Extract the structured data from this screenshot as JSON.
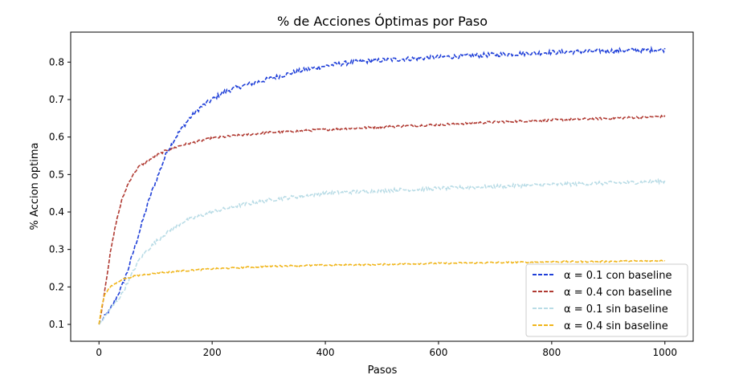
{
  "chart_data": {
    "type": "line",
    "title": "% de Acciones Óptimas por Paso",
    "xlabel": "Pasos",
    "ylabel": "% Accion optima",
    "xlim": [
      -50,
      1050
    ],
    "ylim": [
      0.055,
      0.88
    ],
    "x_ticks": [
      0,
      200,
      400,
      600,
      800,
      1000
    ],
    "y_ticks": [
      0.1,
      0.2,
      0.3,
      0.4,
      0.5,
      0.6,
      0.7,
      0.8
    ],
    "grid": false,
    "legend_position": "lower-right",
    "series": [
      {
        "name": "α = 0.1 con baseline",
        "color": "#1f3fd8",
        "noise": 0.006,
        "x": [
          0,
          10,
          20,
          30,
          40,
          50,
          60,
          70,
          80,
          90,
          100,
          110,
          120,
          140,
          160,
          180,
          200,
          220,
          250,
          300,
          350,
          400,
          450,
          500,
          600,
          700,
          800,
          900,
          1000
        ],
        "y": [
          0.1,
          0.12,
          0.14,
          0.17,
          0.2,
          0.24,
          0.29,
          0.34,
          0.39,
          0.44,
          0.48,
          0.52,
          0.56,
          0.61,
          0.65,
          0.68,
          0.7,
          0.72,
          0.735,
          0.755,
          0.775,
          0.79,
          0.8,
          0.805,
          0.813,
          0.82,
          0.826,
          0.83,
          0.833
        ]
      },
      {
        "name": " α = 0.4 con baseline",
        "color": "#b03a32",
        "noise": 0.003,
        "x": [
          0,
          5,
          10,
          15,
          20,
          30,
          40,
          50,
          60,
          70,
          80,
          100,
          120,
          150,
          200,
          250,
          300,
          400,
          500,
          600,
          700,
          800,
          900,
          1000
        ],
        "y": [
          0.1,
          0.14,
          0.19,
          0.24,
          0.29,
          0.37,
          0.43,
          0.47,
          0.5,
          0.52,
          0.53,
          0.55,
          0.565,
          0.58,
          0.597,
          0.605,
          0.612,
          0.62,
          0.627,
          0.633,
          0.64,
          0.645,
          0.65,
          0.655
        ]
      },
      {
        "name": "α = 0.1 sin baseline",
        "color": "#b9dce6",
        "noise": 0.005,
        "x": [
          0,
          10,
          20,
          30,
          40,
          50,
          60,
          70,
          80,
          100,
          120,
          150,
          200,
          250,
          300,
          400,
          500,
          600,
          700,
          800,
          900,
          1000
        ],
        "y": [
          0.1,
          0.12,
          0.14,
          0.16,
          0.18,
          0.21,
          0.24,
          0.27,
          0.29,
          0.32,
          0.345,
          0.375,
          0.4,
          0.418,
          0.432,
          0.45,
          0.457,
          0.463,
          0.468,
          0.473,
          0.477,
          0.482
        ]
      },
      {
        "name": " α = 0.4 sin baseline",
        "color": "#f0b51a",
        "noise": 0.002,
        "x": [
          0,
          5,
          10,
          20,
          30,
          40,
          60,
          80,
          100,
          150,
          200,
          300,
          400,
          500,
          600,
          700,
          800,
          900,
          1000
        ],
        "y": [
          0.1,
          0.15,
          0.18,
          0.2,
          0.21,
          0.22,
          0.228,
          0.233,
          0.237,
          0.243,
          0.248,
          0.255,
          0.258,
          0.26,
          0.263,
          0.265,
          0.267,
          0.268,
          0.27
        ]
      }
    ]
  }
}
